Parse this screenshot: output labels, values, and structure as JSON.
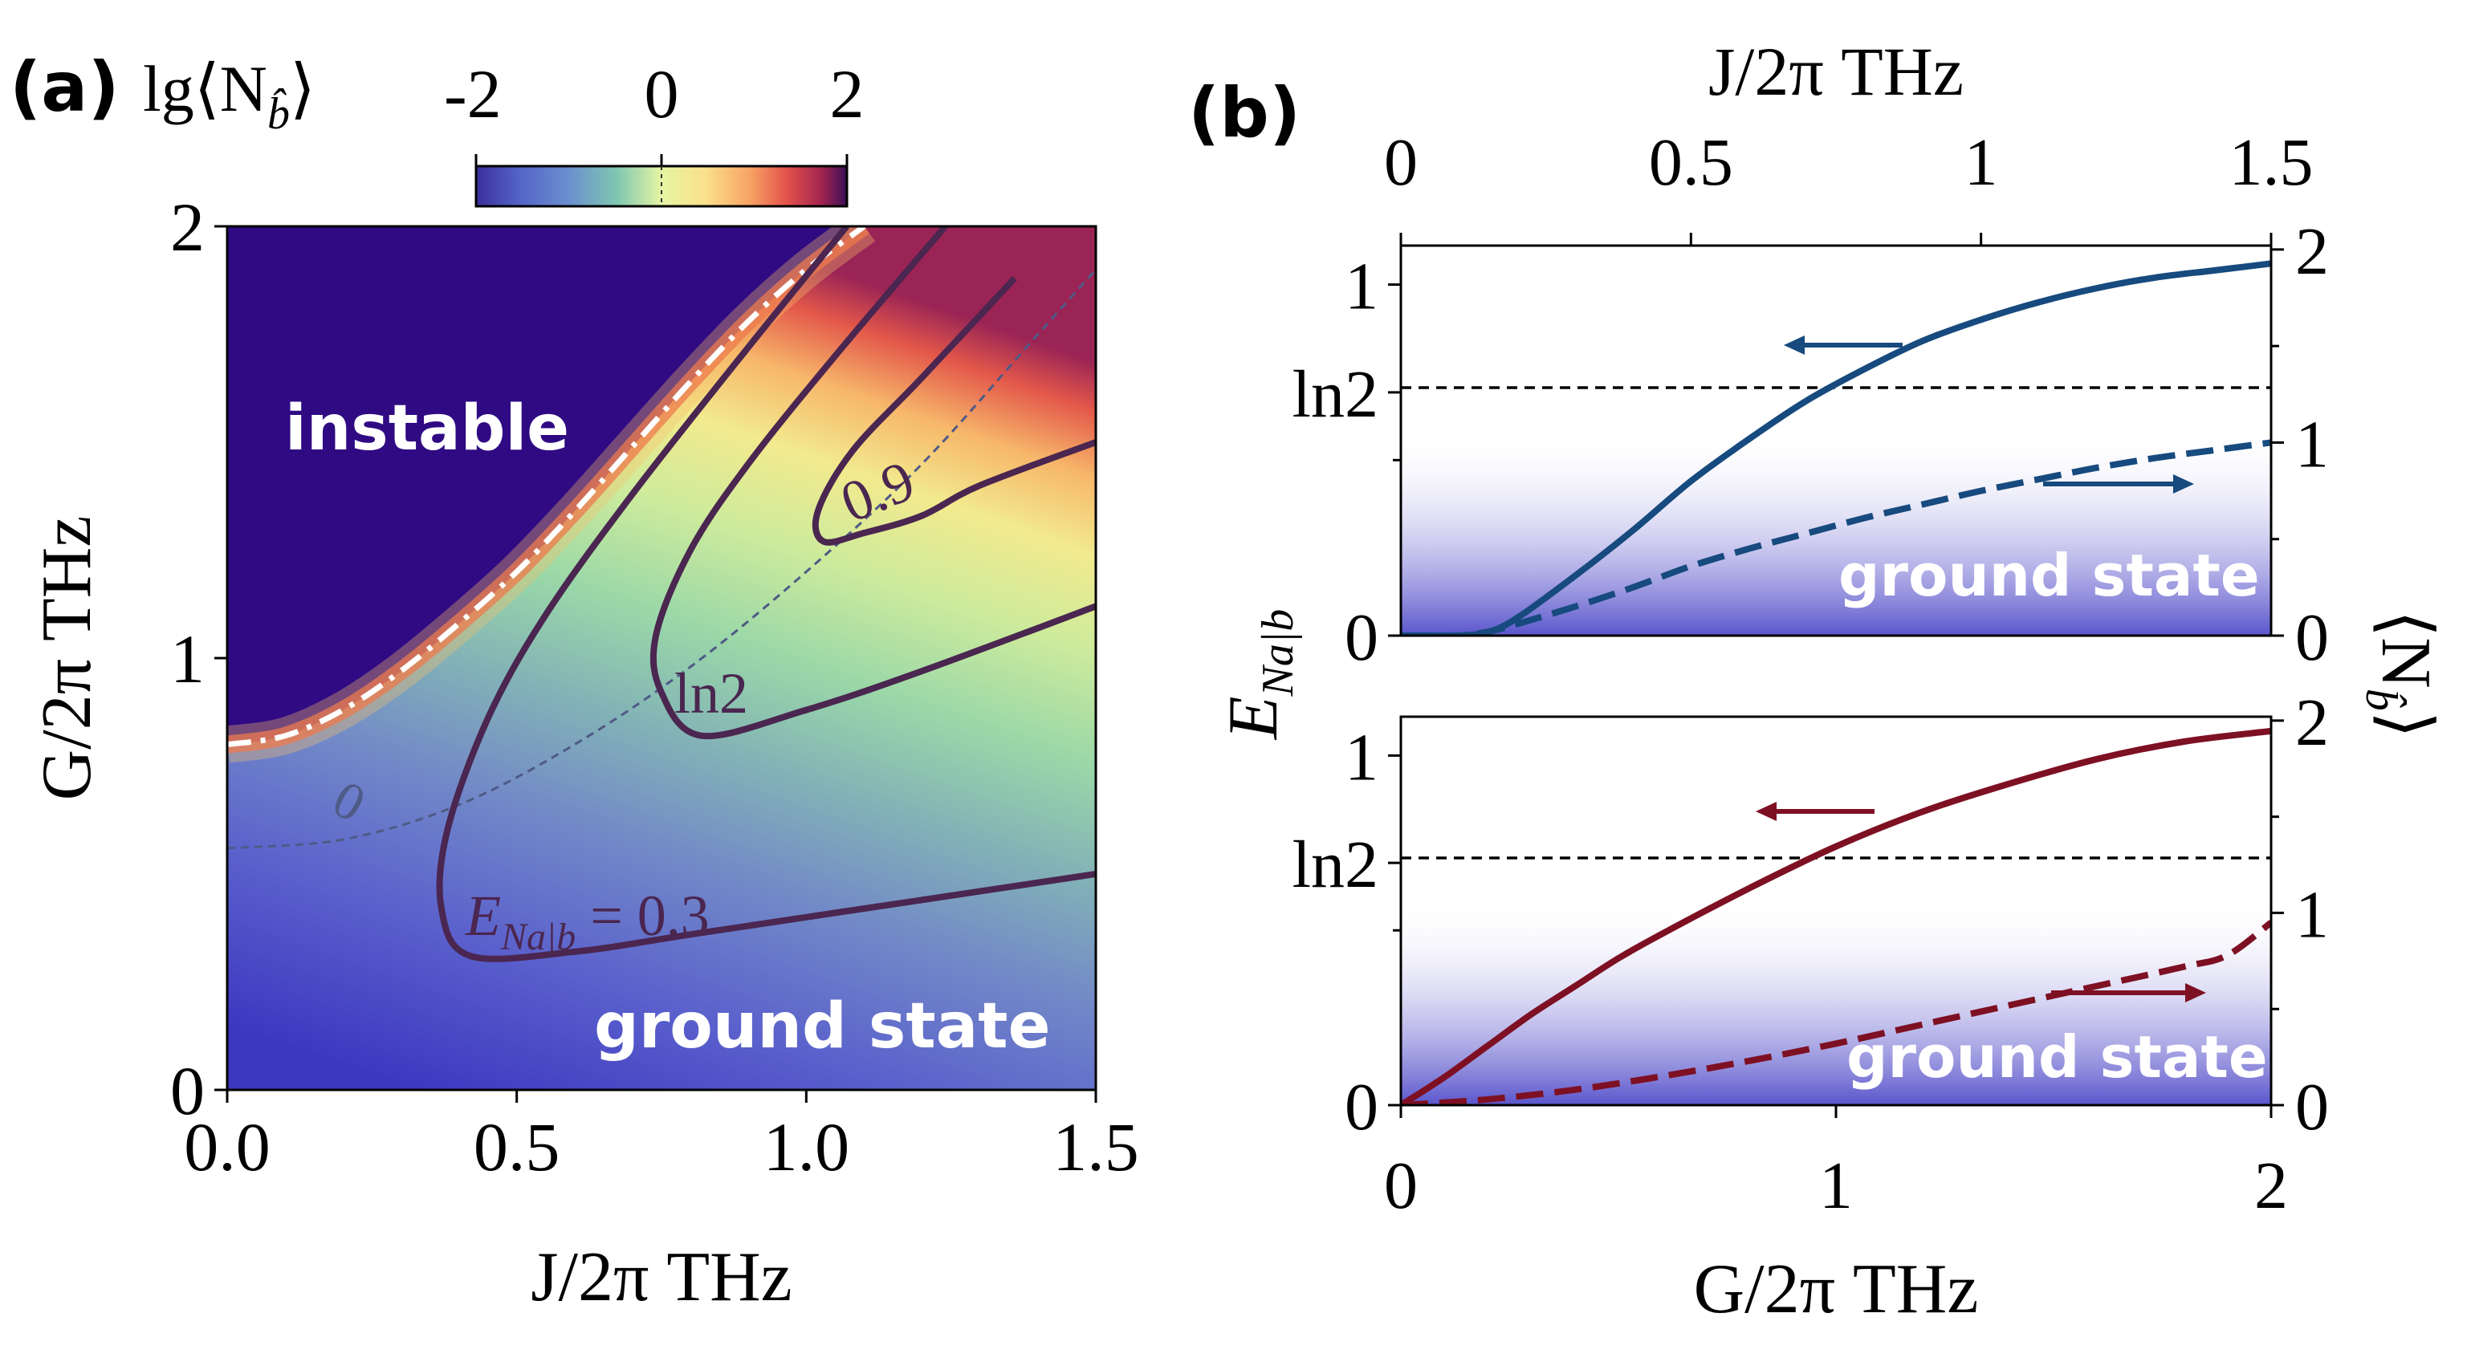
{
  "panel_a": {
    "label": "(a)",
    "colorbar_title": "lg⟨N",
    "colorbar_title_sub": "b̂",
    "colorbar_title_end": "⟩",
    "colorbar_ticks": [
      "-2",
      "0",
      "2"
    ],
    "region_instable": "instable",
    "region_ground": "ground state",
    "contour_zero_label": "0",
    "contour_03_label": "E",
    "contour_03_label_sub": "Na|b",
    "contour_03_label_end": " = 0.3",
    "contour_ln2_label": "ln2",
    "contour_09_label": "0.9"
  },
  "panel_b": {
    "label": "(b)",
    "top_axis_label": "J/2π THz",
    "top_ticks": [
      "0",
      "0.5",
      "1",
      "1.5"
    ],
    "left_ylabel": "E",
    "left_ylabel_sub": "Na|b",
    "right_ylabel": "⟨N",
    "right_ylabel_sub": "b̂",
    "right_ylabel_end": "⟩",
    "left_ticks": [
      "0",
      "ln2",
      "1"
    ],
    "right_ticks": [
      "0",
      "1",
      "2"
    ],
    "bottom_ticks": [
      "0",
      "1",
      "2"
    ],
    "bottom_axis_label": "G/2π THz",
    "region_label": "ground state"
  },
  "chart_data": [
    {
      "type": "heatmap",
      "panel": "a",
      "xlabel": "J/2π THz",
      "ylabel": "G/2π THz",
      "xlim": [
        0.0,
        1.5
      ],
      "ylim": [
        0,
        2
      ],
      "xticks": [
        "0.0",
        "0.5",
        "1.0",
        "1.5"
      ],
      "yticks": [
        "0",
        "1",
        "2"
      ],
      "colorbar": {
        "quantity": "lg⟨N_b⟩",
        "range": [
          -2,
          2
        ]
      },
      "stability_boundary": {
        "x": [
          0,
          0.1,
          0.2,
          0.3,
          0.4,
          0.5,
          0.6,
          0.7,
          0.8,
          0.9,
          1.0,
          1.1
        ],
        "y": [
          0.8,
          0.82,
          0.88,
          0.97,
          1.08,
          1.2,
          1.34,
          1.49,
          1.64,
          1.78,
          1.9,
          2.0
        ]
      },
      "contours": [
        {
          "level": "lg⟨N_b⟩ = 0",
          "label": "0",
          "x": [
            0,
            0.2,
            0.4,
            0.6,
            0.8,
            1.0,
            1.2,
            1.4,
            1.5
          ],
          "y": [
            0.56,
            0.58,
            0.66,
            0.8,
            0.98,
            1.2,
            1.45,
            1.75,
            1.9
          ]
        },
        {
          "level": "E_Na|b = 0.3",
          "label": "E_Na|b = 0.3",
          "x": [
            1.07,
            0.9,
            0.7,
            0.55,
            0.45,
            0.38,
            0.37,
            0.42,
            0.6,
            0.8,
            1.0,
            1.2,
            1.5
          ],
          "y": [
            2.0,
            1.72,
            1.38,
            1.1,
            0.86,
            0.6,
            0.42,
            0.31,
            0.32,
            0.36,
            0.4,
            0.44,
            0.5
          ]
        },
        {
          "level": "E_Na|b = ln2",
          "label": "ln2",
          "x": [
            1.24,
            1.05,
            0.9,
            0.8,
            0.74,
            0.75,
            0.82,
            1.0,
            1.2,
            1.5
          ],
          "y": [
            2.0,
            1.7,
            1.45,
            1.25,
            1.05,
            0.92,
            0.82,
            0.88,
            0.97,
            1.12
          ]
        },
        {
          "level": "E_Na|b = 0.9",
          "label": "0.9",
          "x": [
            1.36,
            1.2,
            1.08,
            1.02,
            1.03,
            1.1,
            1.2,
            1.3,
            1.5
          ],
          "y": [
            1.88,
            1.65,
            1.48,
            1.34,
            1.27,
            1.29,
            1.33,
            1.4,
            1.5
          ]
        }
      ]
    },
    {
      "type": "line",
      "panel": "b-upper",
      "xlabel": "J/2π THz",
      "xlim": [
        0,
        1.5
      ],
      "left_ylabel": "E_Na|b",
      "right_ylabel": "⟨N_b⟩",
      "left_ylim": [
        0,
        1.1
      ],
      "right_ylim": [
        0,
        2
      ],
      "reference_line": {
        "label": "ln2",
        "value": 0.693
      },
      "series": [
        {
          "name": "E_Na|b",
          "axis": "left",
          "style": "solid",
          "color": "#174a7e",
          "x": [
            0,
            0.05,
            0.1,
            0.15,
            0.2,
            0.3,
            0.4,
            0.5,
            0.6,
            0.7,
            0.8,
            0.9,
            1.0,
            1.1,
            1.2,
            1.3,
            1.4,
            1.5
          ],
          "y": [
            0.0,
            0.0,
            0.0,
            0.01,
            0.05,
            0.17,
            0.3,
            0.44,
            0.56,
            0.67,
            0.76,
            0.84,
            0.9,
            0.95,
            0.99,
            1.02,
            1.04,
            1.06
          ]
        },
        {
          "name": "⟨N_b⟩",
          "axis": "right",
          "style": "dashed",
          "color": "#174a7e",
          "x": [
            0,
            0.05,
            0.1,
            0.15,
            0.2,
            0.3,
            0.4,
            0.5,
            0.6,
            0.7,
            0.8,
            0.9,
            1.0,
            1.1,
            1.2,
            1.3,
            1.4,
            1.5
          ],
          "y": [
            0.0,
            0.0,
            0.0,
            0.02,
            0.06,
            0.15,
            0.25,
            0.36,
            0.45,
            0.53,
            0.61,
            0.68,
            0.75,
            0.81,
            0.87,
            0.92,
            0.96,
            1.0
          ]
        }
      ]
    },
    {
      "type": "line",
      "panel": "b-lower",
      "xlabel": "G/2π THz",
      "xlim": [
        0,
        2
      ],
      "left_ylabel": "E_Na|b",
      "right_ylabel": "⟨N_b⟩",
      "left_ylim": [
        0,
        1.1
      ],
      "right_ylim": [
        0,
        2
      ],
      "reference_line": {
        "label": "ln2",
        "value": 0.693
      },
      "series": [
        {
          "name": "E_Na|b",
          "axis": "left",
          "style": "solid",
          "color": "#7e1023",
          "x": [
            0,
            0.1,
            0.2,
            0.3,
            0.4,
            0.5,
            0.6,
            0.8,
            1.0,
            1.2,
            1.4,
            1.6,
            1.8,
            2.0
          ],
          "y": [
            0.0,
            0.08,
            0.17,
            0.26,
            0.34,
            0.42,
            0.49,
            0.62,
            0.74,
            0.84,
            0.92,
            0.99,
            1.04,
            1.07
          ]
        },
        {
          "name": "⟨N_b⟩",
          "axis": "right",
          "style": "dashed",
          "color": "#7e1023",
          "x": [
            0,
            0.2,
            0.4,
            0.6,
            0.8,
            1.0,
            1.2,
            1.4,
            1.6,
            1.8,
            1.9,
            2.0
          ],
          "y": [
            0.0,
            0.03,
            0.08,
            0.15,
            0.23,
            0.32,
            0.42,
            0.52,
            0.62,
            0.72,
            0.78,
            0.95
          ]
        }
      ]
    }
  ]
}
